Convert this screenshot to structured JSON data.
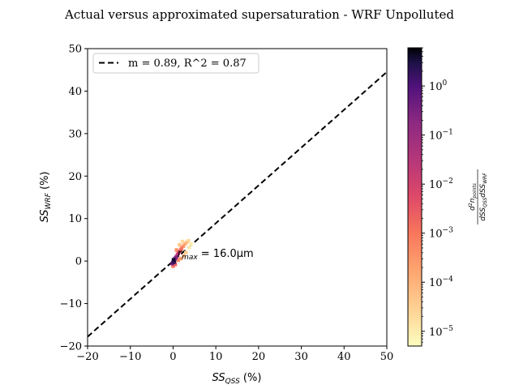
{
  "chart_data": {
    "type": "scatter",
    "title": "Actual versus approximated supersaturation - WRF Unpolluted",
    "xlabel": {
      "main": "SS",
      "sub": "QSS",
      "unit": " (%)"
    },
    "ylabel": {
      "main": "SS",
      "sub": "WRF",
      "unit": " (%)"
    },
    "xlim": [
      -20,
      50
    ],
    "ylim": [
      -20,
      50
    ],
    "xticks": [
      "−20",
      "−10",
      "0",
      "10",
      "20",
      "30",
      "40",
      "50"
    ],
    "xtick_values": [
      -20,
      -10,
      0,
      10,
      20,
      30,
      40,
      50
    ],
    "yticks": [
      "−20",
      "−10",
      "0",
      "10",
      "20",
      "30",
      "40",
      "50"
    ],
    "ytick_values": [
      -20,
      -10,
      0,
      10,
      20,
      30,
      40,
      50
    ],
    "grid": false,
    "legend": {
      "placement": "top-left",
      "entry": "m = 0.89, R^2 = 0.87"
    },
    "fit_line": {
      "slope": 0.89,
      "intercept": 0.0,
      "style": "dashed",
      "color": "#000000"
    },
    "annotation": {
      "x": 1.0,
      "y": 1.0,
      "main": "r",
      "sub": "max",
      "rest": " = 16.0μm"
    },
    "density_points": [
      {
        "x": 0.0,
        "y": -0.3,
        "d": 1.2
      },
      {
        "x": 0.2,
        "y": 0.1,
        "d": 0.8
      },
      {
        "x": 0.4,
        "y": 0.5,
        "d": 0.5
      },
      {
        "x": 0.6,
        "y": 0.8,
        "d": 0.2
      },
      {
        "x": 0.8,
        "y": 1.0,
        "d": 0.08
      },
      {
        "x": -0.2,
        "y": -0.6,
        "d": 0.3
      },
      {
        "x": 1.0,
        "y": 1.4,
        "d": 0.03
      },
      {
        "x": 1.2,
        "y": 1.8,
        "d": 0.01
      },
      {
        "x": 1.5,
        "y": 2.2,
        "d": 0.004
      },
      {
        "x": 1.8,
        "y": 2.6,
        "d": 0.0015
      },
      {
        "x": 2.0,
        "y": 3.0,
        "d": 0.0008
      },
      {
        "x": 2.4,
        "y": 3.5,
        "d": 0.0003
      },
      {
        "x": 2.8,
        "y": 4.0,
        "d": 0.0001
      },
      {
        "x": 3.2,
        "y": 4.4,
        "d": 4e-05
      },
      {
        "x": 3.6,
        "y": 4.8,
        "d": 2e-05
      },
      {
        "x": 0.5,
        "y": -0.8,
        "d": 0.002
      },
      {
        "x": 0.0,
        "y": -1.2,
        "d": 0.001
      },
      {
        "x": 1.2,
        "y": 0.2,
        "d": 0.0005
      },
      {
        "x": 1.8,
        "y": 0.6,
        "d": 0.0002
      },
      {
        "x": 2.5,
        "y": 1.2,
        "d": 8e-05
      },
      {
        "x": 3.0,
        "y": 2.0,
        "d": 3e-05
      },
      {
        "x": 2.2,
        "y": 4.6,
        "d": 2e-05
      },
      {
        "x": 1.5,
        "y": 3.8,
        "d": 5e-05
      },
      {
        "x": 0.8,
        "y": 2.6,
        "d": 0.0004
      },
      {
        "x": 3.8,
        "y": 3.2,
        "d": 1e-05
      },
      {
        "x": 4.2,
        "y": 4.0,
        "d": 1e-05
      },
      {
        "x": 0.3,
        "y": -0.2,
        "d": 2.0
      },
      {
        "x": 0.1,
        "y": 0.3,
        "d": 4.0
      }
    ],
    "colorbar": {
      "scale": "log",
      "colormap": "magma_r",
      "range": [
        5e-06,
        6
      ],
      "ticks": [
        {
          "v": 1e-05,
          "base": "10",
          "exp": "−5"
        },
        {
          "v": 0.0001,
          "base": "10",
          "exp": "−4"
        },
        {
          "v": 0.001,
          "base": "10",
          "exp": "−3"
        },
        {
          "v": 0.01,
          "base": "10",
          "exp": "−2"
        },
        {
          "v": 0.1,
          "base": "10",
          "exp": "−1"
        },
        {
          "v": 1,
          "base": "10",
          "exp": "0"
        }
      ],
      "label": {
        "num_main": "d",
        "num_sup": "2",
        "num_var": "n",
        "num_sub": "points",
        "den_a": "dSS",
        "den_a_sub": "QSS",
        "den_b": "dSS",
        "den_b_sub": "WRF"
      }
    }
  }
}
